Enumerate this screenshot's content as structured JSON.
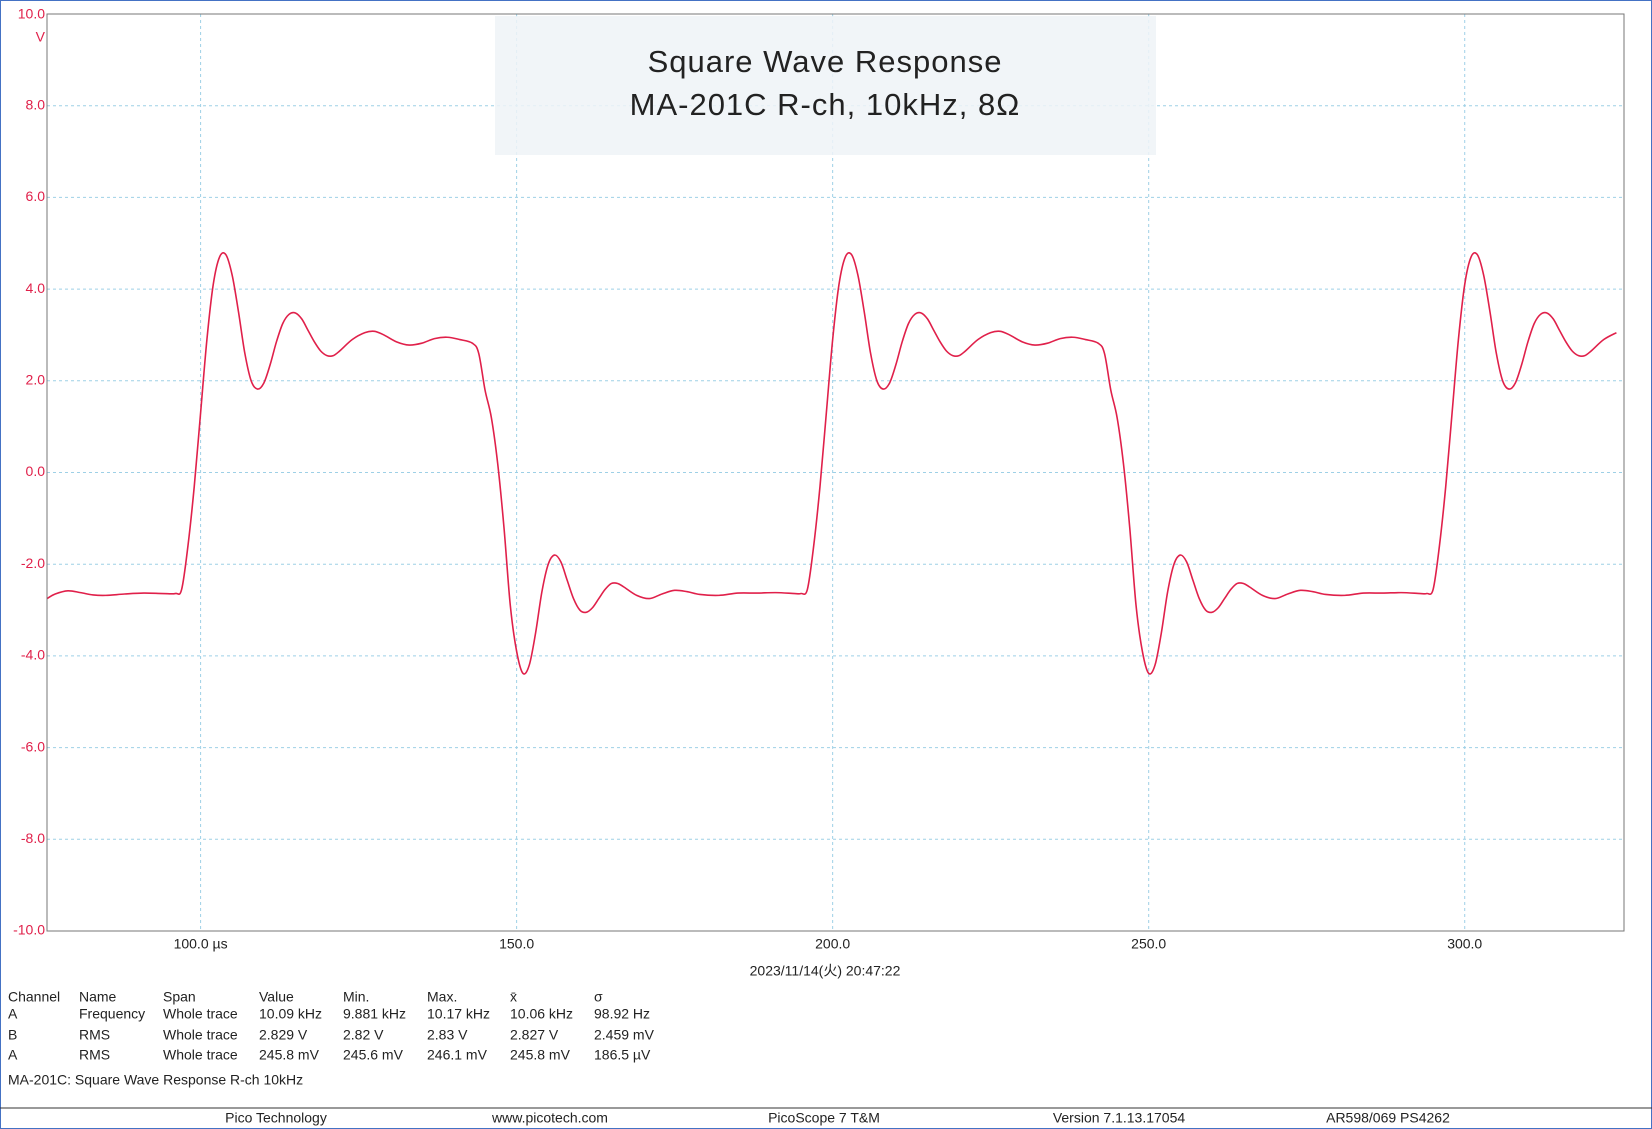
{
  "chart_data": {
    "type": "line",
    "title": "Square Wave Response",
    "subtitle": "MA-201C R-ch, 10kHz, 8Ω",
    "y_unit": "V",
    "color": "#e0204a",
    "grid": true,
    "xlim": [
      75.7,
      325.2
    ],
    "ylim": [
      -10,
      10
    ],
    "xticks": [
      {
        "value": 100,
        "label": "100.0 µs"
      },
      {
        "value": 150,
        "label": "150.0"
      },
      {
        "value": 200,
        "label": "200.0"
      },
      {
        "value": 250,
        "label": "250.0"
      },
      {
        "value": 300,
        "label": "300.0"
      }
    ],
    "yticks": [
      {
        "value": 10,
        "label": "10.0"
      },
      {
        "value": 8,
        "label": "8.0"
      },
      {
        "value": 6,
        "label": "6.0"
      },
      {
        "value": 4,
        "label": "4.0"
      },
      {
        "value": 2,
        "label": "2.0"
      },
      {
        "value": 0,
        "label": "0.0"
      },
      {
        "value": -2,
        "label": "-2.0"
      },
      {
        "value": -4,
        "label": "-4.0"
      },
      {
        "value": -6,
        "label": "-6.0"
      },
      {
        "value": -8,
        "label": "-8.0"
      },
      {
        "value": -10,
        "label": "-10.0"
      }
    ],
    "x": [
      75.7,
      77,
      79,
      81,
      83,
      85,
      88,
      91,
      94,
      96,
      97,
      98,
      99,
      100,
      101,
      102,
      103,
      104,
      105,
      106,
      107,
      108,
      109,
      110,
      111,
      112,
      113,
      114,
      115,
      116,
      117,
      118,
      119,
      120,
      121,
      122,
      124,
      126,
      127.5,
      129,
      131,
      133,
      135,
      137,
      139,
      141,
      143,
      144,
      145,
      146,
      147,
      148,
      149,
      150,
      151,
      152,
      153,
      154,
      155,
      156,
      157,
      158,
      159,
      160,
      161,
      162,
      163,
      164,
      165,
      166,
      167,
      169,
      171,
      173,
      175,
      177,
      179,
      182,
      185,
      188,
      191,
      194,
      195,
      196,
      197,
      198,
      199,
      200,
      201,
      202,
      203,
      204,
      205,
      206,
      207,
      208,
      209,
      210,
      211,
      212,
      213,
      214,
      215,
      216,
      217,
      218,
      219,
      220,
      221,
      223,
      225,
      226.5,
      228,
      230,
      232,
      234,
      236,
      238,
      240,
      242,
      243,
      244,
      245,
      246,
      247,
      248,
      249,
      250,
      251,
      252,
      253,
      254,
      255,
      256,
      257,
      258,
      259,
      260,
      261,
      262,
      263,
      264,
      265,
      266,
      268,
      270,
      272,
      274,
      276,
      278,
      281,
      284,
      287,
      290,
      293,
      294,
      295,
      296,
      297,
      298,
      299,
      300,
      301,
      302,
      303,
      304,
      305,
      306,
      307,
      308,
      309,
      310,
      311,
      312,
      313,
      314,
      315,
      316,
      317,
      318,
      319,
      320,
      322,
      324
    ],
    "values": [
      -2.75,
      -2.65,
      -2.58,
      -2.62,
      -2.67,
      -2.68,
      -2.65,
      -2.63,
      -2.64,
      -2.64,
      -2.55,
      -1.6,
      -0.3,
      1.3,
      2.9,
      4.1,
      4.7,
      4.75,
      4.3,
      3.5,
      2.6,
      2.0,
      1.82,
      1.95,
      2.35,
      2.85,
      3.25,
      3.45,
      3.48,
      3.35,
      3.1,
      2.85,
      2.65,
      2.55,
      2.55,
      2.65,
      2.9,
      3.05,
      3.08,
      3.0,
      2.85,
      2.78,
      2.82,
      2.92,
      2.95,
      2.9,
      2.82,
      2.6,
      1.8,
      1.2,
      0.2,
      -1.2,
      -2.9,
      -3.9,
      -4.38,
      -4.2,
      -3.5,
      -2.6,
      -2.0,
      -1.8,
      -1.95,
      -2.35,
      -2.75,
      -3.0,
      -3.05,
      -2.95,
      -2.75,
      -2.55,
      -2.42,
      -2.42,
      -2.5,
      -2.68,
      -2.75,
      -2.65,
      -2.57,
      -2.6,
      -2.66,
      -2.68,
      -2.63,
      -2.63,
      -2.62,
      -2.64,
      -2.64,
      -2.55,
      -1.6,
      -0.3,
      1.3,
      2.9,
      4.1,
      4.7,
      4.75,
      4.3,
      3.5,
      2.6,
      2.0,
      1.82,
      1.95,
      2.35,
      2.85,
      3.25,
      3.45,
      3.48,
      3.35,
      3.1,
      2.85,
      2.65,
      2.55,
      2.55,
      2.65,
      2.9,
      3.05,
      3.08,
      3.0,
      2.85,
      2.78,
      2.82,
      2.92,
      2.95,
      2.9,
      2.82,
      2.6,
      1.8,
      1.2,
      0.2,
      -1.2,
      -2.9,
      -3.9,
      -4.38,
      -4.2,
      -3.5,
      -2.6,
      -2.0,
      -1.8,
      -1.95,
      -2.35,
      -2.75,
      -3.0,
      -3.05,
      -2.95,
      -2.75,
      -2.55,
      -2.42,
      -2.42,
      -2.5,
      -2.68,
      -2.75,
      -2.65,
      -2.57,
      -2.6,
      -2.66,
      -2.68,
      -2.63,
      -2.63,
      -2.62,
      -2.64,
      -2.64,
      -2.55,
      -1.6,
      -0.3,
      1.3,
      2.9,
      4.1,
      4.7,
      4.75,
      4.3,
      3.5,
      2.6,
      2.0,
      1.82,
      1.95,
      2.35,
      2.85,
      3.25,
      3.45,
      3.48,
      3.35,
      3.1,
      2.85,
      2.65,
      2.55,
      2.55,
      2.65,
      2.9,
      3.05
    ]
  },
  "timestamp": "2023/11/14(火) 20:47:22",
  "measurements": {
    "columns": [
      "Channel",
      "Name",
      "Span",
      "Value",
      "Min.",
      "Max.",
      "x̄",
      "σ"
    ],
    "rows": [
      [
        "A",
        "Frequency",
        "Whole trace",
        "10.09 kHz",
        "9.881 kHz",
        "10.17 kHz",
        "10.06 kHz",
        "98.92 Hz"
      ],
      [
        "B",
        "RMS",
        "Whole trace",
        "2.829 V",
        "2.82 V",
        "2.83 V",
        "2.827 V",
        "2.459 mV"
      ],
      [
        "A",
        "RMS",
        "Whole trace",
        "245.8 mV",
        "245.6 mV",
        "246.1 mV",
        "245.8 mV",
        "186.5 µV"
      ]
    ]
  },
  "caption": "MA-201C: Square Wave Response R-ch 10kHz",
  "footer": [
    "Pico Technology",
    "www.picotech.com",
    "PicoScope 7 T&M",
    "Version 7.1.13.17054",
    "AR598/069 PS4262"
  ]
}
